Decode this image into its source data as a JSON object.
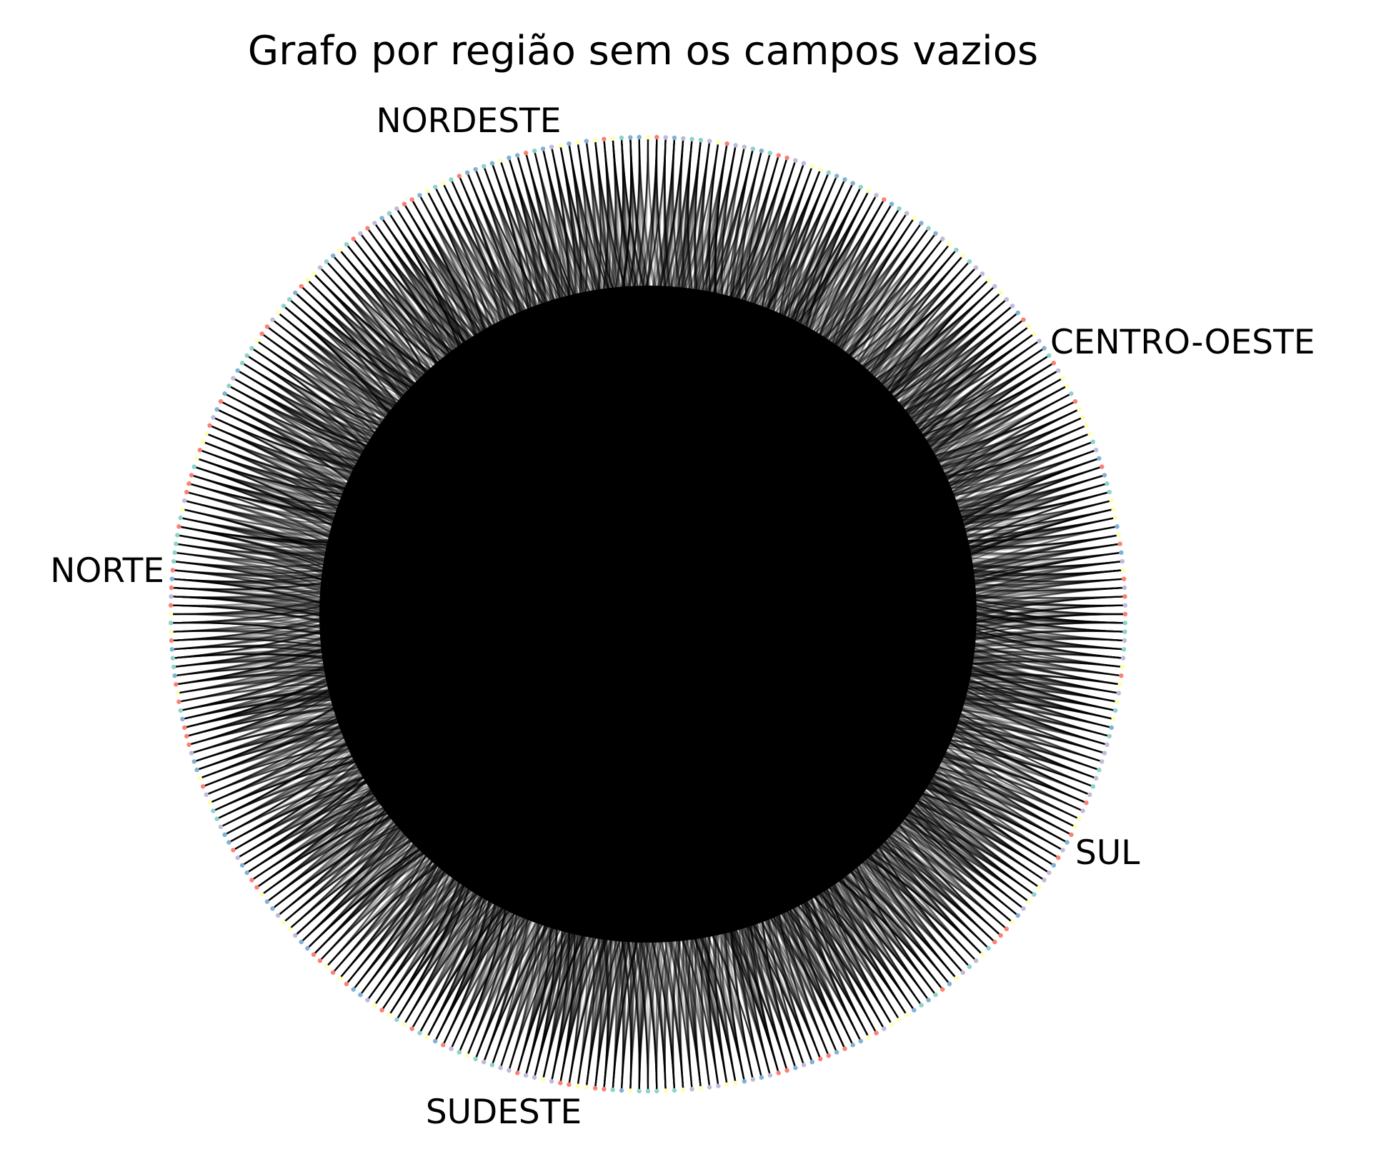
{
  "title": "Grafo por região sem os campos vazios",
  "chart_data": {
    "type": "circular-network",
    "node_order": [
      "CENTRO-OESTE",
      "NORDESTE",
      "NORTE",
      "SUDESTE",
      "SUL"
    ],
    "regions": [
      {
        "name": "NORDESTE",
        "label_angle_deg": 102
      },
      {
        "name": "CENTRO-OESTE",
        "label_angle_deg": 35
      },
      {
        "name": "NORTE",
        "label_angle_deg": 175
      },
      {
        "name": "SUL",
        "label_angle_deg": 322
      },
      {
        "name": "SUDESTE",
        "label_angle_deg": 251
      }
    ],
    "node_colors": [
      "#8dd3c7",
      "#fb8072",
      "#80b1d3",
      "#bebada",
      "#ffffb3"
    ],
    "edge_color": "#000000",
    "edges_dense": true
  }
}
